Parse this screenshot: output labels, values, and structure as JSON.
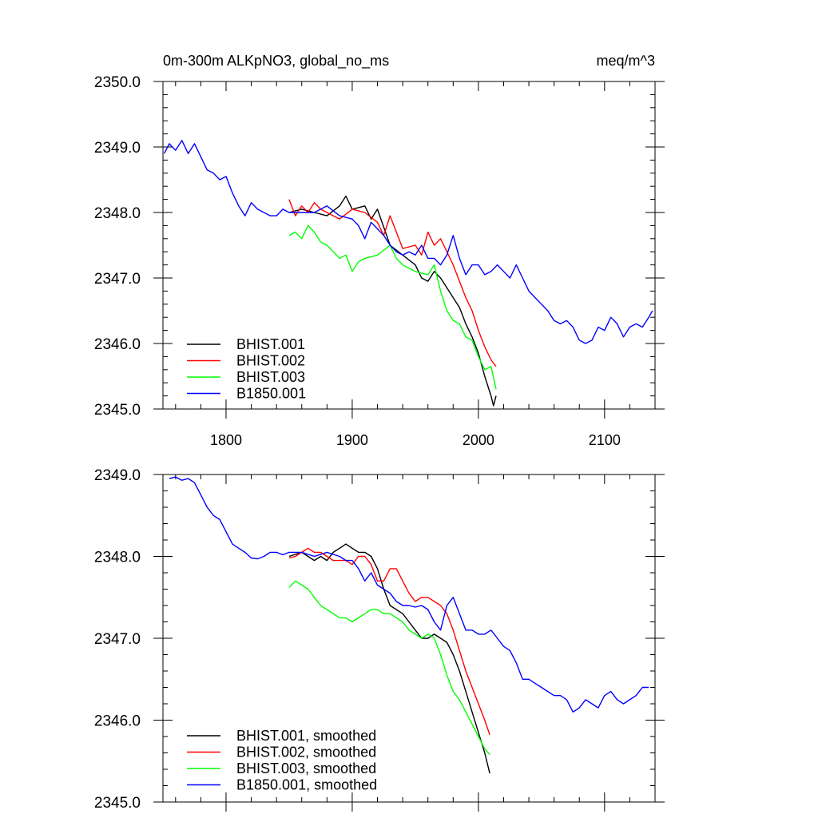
{
  "chart_data": [
    {
      "type": "line",
      "title_left": "0m-300m ALKpNO3, global_no_ms",
      "title_right": "meq/m^3",
      "xlabel": "",
      "ylabel": "",
      "xlim": [
        1750,
        2140
      ],
      "ylim": [
        2345.0,
        2350.0
      ],
      "x_ticks": [
        1800,
        1900,
        2000,
        2100
      ],
      "x_tick_labels": [
        "1800",
        "1900",
        "2000",
        "2100"
      ],
      "y_ticks": [
        2345.0,
        2346.0,
        2347.0,
        2348.0,
        2349.0,
        2350.0
      ],
      "y_tick_labels": [
        "2345.0",
        "2346.0",
        "2347.0",
        "2348.0",
        "2349.0",
        "2350.0"
      ],
      "legend_position": "bottom-left",
      "series": [
        {
          "name": "BHIST.001",
          "color": "#000000",
          "x": [
            1850,
            1860,
            1870,
            1880,
            1890,
            1895,
            1900,
            1910,
            1915,
            1920,
            1930,
            1940,
            1950,
            1955,
            1960,
            1965,
            1970,
            1975,
            1980,
            1985,
            1990,
            1995,
            2000,
            2005,
            2010,
            2012,
            2014
          ],
          "values": [
            2348.0,
            2348.05,
            2348.0,
            2347.95,
            2348.1,
            2348.25,
            2348.05,
            2348.1,
            2347.9,
            2348.05,
            2347.5,
            2347.35,
            2347.2,
            2347.0,
            2346.95,
            2347.1,
            2347.0,
            2346.85,
            2346.7,
            2346.55,
            2346.3,
            2346.1,
            2345.85,
            2345.5,
            2345.2,
            2345.05,
            2345.2
          ]
        },
        {
          "name": "BHIST.002",
          "color": "#ff0000",
          "x": [
            1850,
            1855,
            1860,
            1865,
            1870,
            1875,
            1880,
            1890,
            1900,
            1910,
            1920,
            1925,
            1930,
            1935,
            1940,
            1950,
            1955,
            1960,
            1965,
            1970,
            1980,
            1985,
            1990,
            1995,
            2000,
            2005,
            2010,
            2014
          ],
          "values": [
            2348.2,
            2347.95,
            2348.1,
            2348.0,
            2348.15,
            2348.05,
            2348.0,
            2347.9,
            2348.05,
            2348.0,
            2347.85,
            2347.65,
            2347.95,
            2347.7,
            2347.45,
            2347.5,
            2347.35,
            2347.7,
            2347.5,
            2347.6,
            2347.2,
            2346.95,
            2346.7,
            2346.5,
            2346.2,
            2345.95,
            2345.75,
            2345.65
          ]
        },
        {
          "name": "BHIST.003",
          "color": "#00ff00",
          "x": [
            1850,
            1855,
            1860,
            1865,
            1870,
            1875,
            1880,
            1885,
            1890,
            1895,
            1900,
            1905,
            1910,
            1920,
            1930,
            1935,
            1940,
            1950,
            1960,
            1965,
            1970,
            1975,
            1980,
            1985,
            1990,
            1995,
            2000,
            2005,
            2010,
            2014
          ],
          "values": [
            2347.65,
            2347.7,
            2347.6,
            2347.8,
            2347.7,
            2347.55,
            2347.5,
            2347.4,
            2347.3,
            2347.35,
            2347.1,
            2347.25,
            2347.3,
            2347.35,
            2347.5,
            2347.3,
            2347.2,
            2347.1,
            2347.05,
            2347.2,
            2346.8,
            2346.5,
            2346.35,
            2346.3,
            2346.1,
            2346.05,
            2345.8,
            2345.6,
            2345.65,
            2345.3
          ]
        },
        {
          "name": "B1850.001",
          "color": "#0000ff",
          "x": [
            1751,
            1755,
            1760,
            1765,
            1770,
            1775,
            1780,
            1785,
            1790,
            1795,
            1800,
            1805,
            1810,
            1815,
            1820,
            1825,
            1830,
            1835,
            1840,
            1845,
            1850,
            1860,
            1870,
            1880,
            1890,
            1900,
            1905,
            1910,
            1915,
            1920,
            1925,
            1930,
            1935,
            1940,
            1945,
            1950,
            1955,
            1960,
            1965,
            1970,
            1975,
            1980,
            1985,
            1990,
            1995,
            2000,
            2005,
            2010,
            2015,
            2020,
            2025,
            2030,
            2035,
            2040,
            2045,
            2050,
            2055,
            2060,
            2065,
            2070,
            2075,
            2080,
            2085,
            2090,
            2095,
            2100,
            2105,
            2110,
            2115,
            2120,
            2125,
            2130,
            2135,
            2138
          ],
          "values": [
            2348.9,
            2349.05,
            2348.95,
            2349.1,
            2348.9,
            2349.05,
            2348.85,
            2348.65,
            2348.6,
            2348.5,
            2348.55,
            2348.3,
            2348.1,
            2347.95,
            2348.15,
            2348.05,
            2348.0,
            2347.95,
            2347.95,
            2348.05,
            2348.0,
            2348.0,
            2348.0,
            2348.1,
            2347.95,
            2347.9,
            2347.8,
            2347.6,
            2347.85,
            2347.75,
            2347.65,
            2347.5,
            2347.4,
            2347.35,
            2347.4,
            2347.35,
            2347.5,
            2347.3,
            2347.3,
            2347.2,
            2347.35,
            2347.65,
            2347.3,
            2347.05,
            2347.2,
            2347.2,
            2347.05,
            2347.1,
            2347.2,
            2347.1,
            2347.0,
            2347.2,
            2347.0,
            2346.8,
            2346.7,
            2346.6,
            2346.5,
            2346.35,
            2346.3,
            2346.35,
            2346.25,
            2346.05,
            2346.0,
            2346.05,
            2346.25,
            2346.2,
            2346.4,
            2346.3,
            2346.1,
            2346.25,
            2346.3,
            2346.25,
            2346.4,
            2346.5
          ]
        }
      ]
    },
    {
      "type": "line",
      "title_left": "",
      "title_right": "",
      "xlabel": "",
      "ylabel": "",
      "xlim": [
        1750,
        2140
      ],
      "ylim": [
        2345.0,
        2349.0
      ],
      "x_ticks": [
        1800,
        1900,
        2000,
        2100
      ],
      "x_tick_labels": [],
      "y_ticks": [
        2345.0,
        2346.0,
        2347.0,
        2348.0,
        2349.0
      ],
      "y_tick_labels": [
        "2345.0",
        "2346.0",
        "2347.0",
        "2348.0",
        "2349.0"
      ],
      "legend_position": "bottom-left",
      "series": [
        {
          "name": "BHIST.001, smoothed",
          "color": "#000000",
          "x": [
            1850,
            1860,
            1865,
            1870,
            1875,
            1880,
            1885,
            1890,
            1895,
            1900,
            1905,
            1910,
            1915,
            1920,
            1925,
            1930,
            1935,
            1940,
            1945,
            1950,
            1955,
            1960,
            1965,
            1970,
            1975,
            1980,
            1985,
            1990,
            1995,
            2000,
            2005,
            2009
          ],
          "values": [
            2348.0,
            2348.05,
            2348.0,
            2347.95,
            2348.0,
            2347.95,
            2348.05,
            2348.1,
            2348.15,
            2348.1,
            2348.05,
            2348.05,
            2348.0,
            2347.85,
            2347.6,
            2347.4,
            2347.35,
            2347.3,
            2347.2,
            2347.1,
            2347.0,
            2347.0,
            2347.05,
            2347.0,
            2346.95,
            2346.8,
            2346.6,
            2346.35,
            2346.1,
            2345.85,
            2345.6,
            2345.35
          ]
        },
        {
          "name": "BHIST.002, smoothed",
          "color": "#ff0000",
          "x": [
            1850,
            1855,
            1860,
            1865,
            1870,
            1875,
            1880,
            1885,
            1890,
            1895,
            1900,
            1905,
            1910,
            1915,
            1920,
            1925,
            1930,
            1935,
            1940,
            1945,
            1950,
            1955,
            1960,
            1965,
            1970,
            1975,
            1980,
            1985,
            1990,
            1995,
            2000,
            2005,
            2009
          ],
          "values": [
            2347.98,
            2348.0,
            2348.05,
            2348.1,
            2348.05,
            2348.05,
            2348.0,
            2347.95,
            2347.95,
            2347.95,
            2347.9,
            2348.0,
            2348.0,
            2347.9,
            2347.7,
            2347.7,
            2347.85,
            2347.85,
            2347.7,
            2347.55,
            2347.45,
            2347.5,
            2347.5,
            2347.45,
            2347.4,
            2347.3,
            2347.1,
            2346.85,
            2346.6,
            2346.4,
            2346.2,
            2346.0,
            2345.82
          ]
        },
        {
          "name": "BHIST.003, smoothed",
          "color": "#00ff00",
          "x": [
            1850,
            1855,
            1860,
            1865,
            1870,
            1875,
            1880,
            1885,
            1890,
            1895,
            1900,
            1905,
            1910,
            1915,
            1920,
            1925,
            1930,
            1935,
            1940,
            1945,
            1950,
            1955,
            1960,
            1965,
            1970,
            1975,
            1980,
            1985,
            1990,
            1995,
            2000,
            2005,
            2009
          ],
          "values": [
            2347.62,
            2347.7,
            2347.65,
            2347.6,
            2347.5,
            2347.4,
            2347.35,
            2347.3,
            2347.25,
            2347.25,
            2347.2,
            2347.25,
            2347.3,
            2347.35,
            2347.35,
            2347.3,
            2347.3,
            2347.25,
            2347.2,
            2347.1,
            2347.05,
            2347.0,
            2347.05,
            2347.0,
            2346.8,
            2346.55,
            2346.35,
            2346.25,
            2346.1,
            2345.95,
            2345.8,
            2345.65,
            2345.58
          ]
        },
        {
          "name": "B1850.001, smoothed",
          "color": "#0000ff",
          "x": [
            1755,
            1760,
            1765,
            1770,
            1775,
            1780,
            1785,
            1790,
            1795,
            1800,
            1805,
            1810,
            1815,
            1820,
            1825,
            1830,
            1835,
            1840,
            1845,
            1850,
            1860,
            1870,
            1880,
            1890,
            1895,
            1900,
            1905,
            1910,
            1915,
            1920,
            1925,
            1930,
            1935,
            1940,
            1945,
            1950,
            1955,
            1960,
            1965,
            1970,
            1975,
            1980,
            1985,
            1990,
            1995,
            2000,
            2005,
            2010,
            2015,
            2020,
            2025,
            2030,
            2035,
            2040,
            2045,
            2050,
            2055,
            2060,
            2065,
            2070,
            2075,
            2080,
            2085,
            2090,
            2095,
            2100,
            2105,
            2110,
            2115,
            2120,
            2125,
            2130,
            2135
          ],
          "values": [
            2348.95,
            2348.97,
            2348.93,
            2348.95,
            2348.9,
            2348.75,
            2348.6,
            2348.5,
            2348.45,
            2348.3,
            2348.15,
            2348.1,
            2348.05,
            2347.98,
            2347.97,
            2348.0,
            2348.05,
            2348.05,
            2348.02,
            2348.05,
            2348.05,
            2348.0,
            2348.05,
            2348.0,
            2347.95,
            2347.95,
            2347.85,
            2347.7,
            2347.8,
            2347.65,
            2347.6,
            2347.55,
            2347.45,
            2347.4,
            2347.4,
            2347.38,
            2347.4,
            2347.35,
            2347.2,
            2347.1,
            2347.4,
            2347.5,
            2347.3,
            2347.1,
            2347.1,
            2347.05,
            2347.05,
            2347.1,
            2347.0,
            2346.9,
            2346.85,
            2346.7,
            2346.5,
            2346.5,
            2346.45,
            2346.4,
            2346.35,
            2346.3,
            2346.3,
            2346.25,
            2346.1,
            2346.15,
            2346.25,
            2346.2,
            2346.15,
            2346.3,
            2346.35,
            2346.25,
            2346.2,
            2346.25,
            2346.3,
            2346.4,
            2346.4
          ]
        }
      ]
    }
  ]
}
